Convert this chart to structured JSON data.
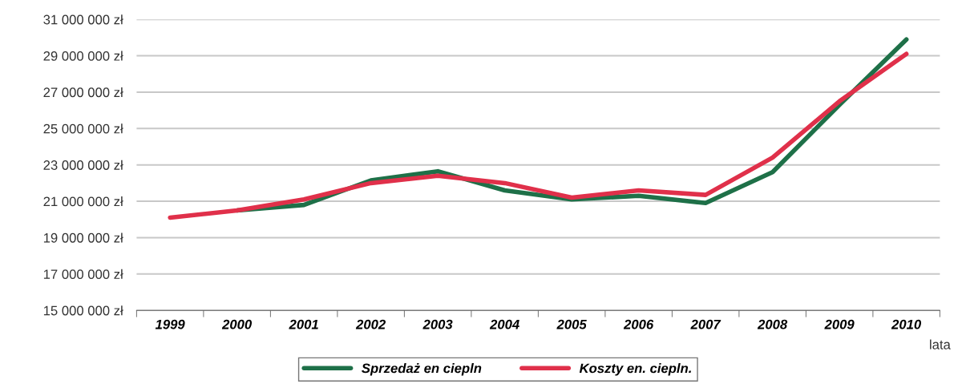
{
  "chart_data": {
    "type": "line",
    "xlabel": "lata",
    "categories": [
      "1999",
      "2000",
      "2001",
      "2002",
      "2003",
      "2004",
      "2005",
      "2006",
      "2007",
      "2008",
      "2009",
      "2010"
    ],
    "series": [
      {
        "name": "Sprzedaż en ciepln",
        "color": "#1e7048",
        "values": [
          null,
          20500000,
          20800000,
          22150000,
          22650000,
          21600000,
          21100000,
          21300000,
          20900000,
          22600000,
          26300000,
          29900000
        ]
      },
      {
        "name": "Koszty en. ciepln.",
        "color": "#e0304a",
        "values": [
          20100000,
          20500000,
          21100000,
          22000000,
          22400000,
          22000000,
          21200000,
          21600000,
          21350000,
          23400000,
          26500000,
          29100000
        ]
      }
    ],
    "ylim": [
      15000000,
      31000000
    ],
    "yticks": [
      {
        "value": 15000000,
        "label": "15 000 000 zł"
      },
      {
        "value": 17000000,
        "label": "17 000 000 zł"
      },
      {
        "value": 19000000,
        "label": "19 000 000 zł"
      },
      {
        "value": 21000000,
        "label": "21 000 000 zł"
      },
      {
        "value": 23000000,
        "label": "23 000 000 zł"
      },
      {
        "value": 25000000,
        "label": "25 000 000 zł"
      },
      {
        "value": 27000000,
        "label": "27 000 000 zł"
      },
      {
        "value": 29000000,
        "label": "29 000 000 zł"
      },
      {
        "value": 31000000,
        "label": "31 000 000 zł"
      }
    ],
    "grid": "y",
    "legend": "bottom",
    "marker": "none",
    "line_style": "solid"
  }
}
